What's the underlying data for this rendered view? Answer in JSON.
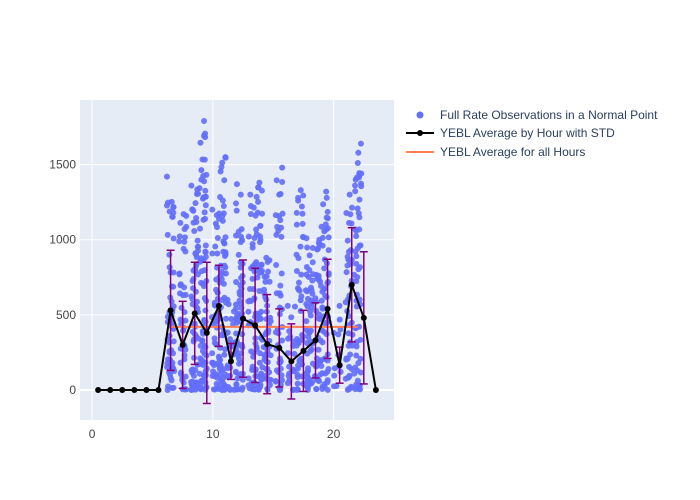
{
  "chart_data": {
    "type": "scatter",
    "title": "",
    "xlabel": "",
    "ylabel": "",
    "xlim": [
      -1,
      25
    ],
    "ylim": [
      -200,
      1930
    ],
    "x_ticks": [
      0,
      10,
      20
    ],
    "y_ticks": [
      0,
      500,
      1000,
      1500
    ],
    "grid": true,
    "legend_position": "top-right outside plot",
    "colors": {
      "scatter": "#636efa",
      "average_line": "#000000",
      "error_bars": "#800080",
      "overall_average": "#ff7f50",
      "plot_bg": "#e5ecf6",
      "grid": "#ffffff"
    },
    "series": [
      {
        "name": "Full Rate Observations in a Normal Point",
        "kind": "scatter",
        "bands": [
          {
            "hour": 6.5,
            "count": 60,
            "max": 1420
          },
          {
            "hour": 7.5,
            "count": 45,
            "max": 1170
          },
          {
            "hour": 8.5,
            "count": 70,
            "max": 1360
          },
          {
            "hour": 9.2,
            "count": 85,
            "max": 1790
          },
          {
            "hour": 10.2,
            "count": 45,
            "max": 1200
          },
          {
            "hour": 10.8,
            "count": 70,
            "max": 1550
          },
          {
            "hour": 11.5,
            "count": 20,
            "max": 600
          },
          {
            "hour": 12.2,
            "count": 65,
            "max": 1370
          },
          {
            "hour": 13.2,
            "count": 40,
            "max": 1300
          },
          {
            "hour": 13.8,
            "count": 60,
            "max": 1380
          },
          {
            "hour": 14.5,
            "count": 45,
            "max": 880
          },
          {
            "hour": 15.5,
            "count": 45,
            "max": 1480
          },
          {
            "hour": 16.5,
            "count": 20,
            "max": 560
          },
          {
            "hour": 17.2,
            "count": 45,
            "max": 1330
          },
          {
            "hour": 18.0,
            "count": 55,
            "max": 1010
          },
          {
            "hour": 18.7,
            "count": 40,
            "max": 1000
          },
          {
            "hour": 19.3,
            "count": 55,
            "max": 1320
          },
          {
            "hour": 20.3,
            "count": 12,
            "max": 560
          },
          {
            "hour": 21.3,
            "count": 45,
            "max": 1300
          },
          {
            "hour": 22.0,
            "count": 60,
            "max": 1640
          }
        ]
      },
      {
        "name": "YEBL Average by Hour with STD",
        "kind": "line",
        "x": [
          0.5,
          1.5,
          2.5,
          3.5,
          4.5,
          5.5,
          6.5,
          7.5,
          8.5,
          9.5,
          10.5,
          11.5,
          12.5,
          13.5,
          14.5,
          15.5,
          16.5,
          17.5,
          18.5,
          19.5,
          20.5,
          21.5,
          22.5,
          23.5
        ],
        "y": [
          0,
          0,
          0,
          0,
          0,
          0,
          530,
          300,
          510,
          380,
          560,
          190,
          475,
          430,
          305,
          280,
          190,
          260,
          330,
          540,
          165,
          700,
          480,
          0
        ],
        "std": [
          0,
          0,
          0,
          0,
          0,
          0,
          400,
          290,
          340,
          470,
          270,
          120,
          390,
          380,
          330,
          260,
          250,
          270,
          250,
          330,
          120,
          380,
          440,
          0
        ]
      },
      {
        "name": "YEBL Average for all Hours",
        "kind": "line",
        "x": [
          6.5,
          22.0
        ],
        "y": [
          420,
          420
        ]
      }
    ]
  }
}
